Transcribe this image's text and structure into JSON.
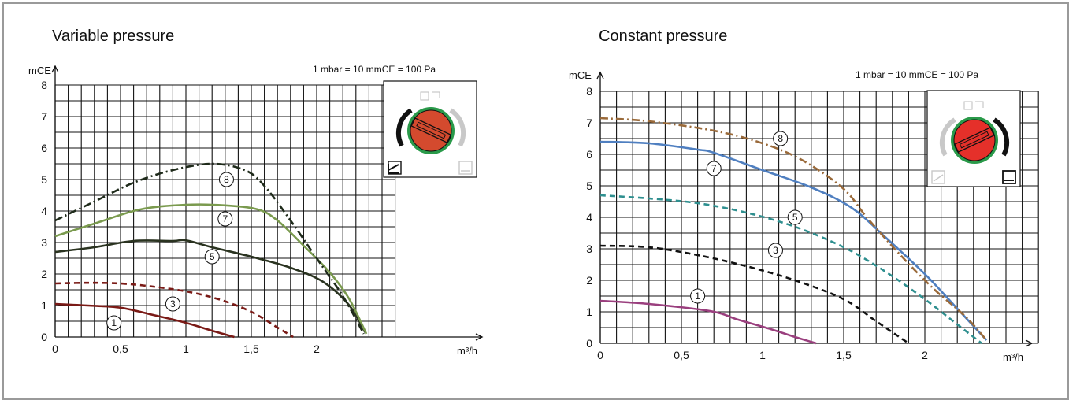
{
  "chart_data": [
    {
      "type": "line",
      "title": "Variable pressure",
      "note": "1 mbar = 10 mmCE = 100 Pa",
      "ylabel": "mCE",
      "xlabel": "m³/h",
      "xlim": [
        0,
        2.65
      ],
      "ylim": [
        0,
        8
      ],
      "grid": true,
      "x_ticks": [
        {
          "v": 0,
          "label": "0"
        },
        {
          "v": 0.5,
          "label": "0,5"
        },
        {
          "v": 1,
          "label": "1"
        },
        {
          "v": 1.5,
          "label": "1,5"
        },
        {
          "v": 2,
          "label": "2"
        }
      ],
      "y_ticks": [
        {
          "v": 0,
          "label": "0"
        },
        {
          "v": 1,
          "label": "1"
        },
        {
          "v": 2,
          "label": "2"
        },
        {
          "v": 3,
          "label": "3"
        },
        {
          "v": 4,
          "label": "4"
        },
        {
          "v": 5,
          "label": "5"
        },
        {
          "v": 6,
          "label": "6"
        },
        {
          "v": 7,
          "label": "7"
        },
        {
          "v": 8,
          "label": "8"
        }
      ],
      "series": [
        {
          "name": "1",
          "color": "#7a1a16",
          "dash": "solid",
          "points": [
            [
              0,
              1.05
            ],
            [
              0.25,
              1.0
            ],
            [
              0.5,
              0.93
            ],
            [
              0.75,
              0.7
            ],
            [
              1.0,
              0.45
            ],
            [
              1.2,
              0.2
            ],
            [
              1.37,
              0.0
            ]
          ],
          "label_pos": [
            0.45,
            0.45
          ]
        },
        {
          "name": "3",
          "color": "#7a1a16",
          "dash": "dashed",
          "points": [
            [
              0,
              1.7
            ],
            [
              0.25,
              1.72
            ],
            [
              0.5,
              1.7
            ],
            [
              0.75,
              1.6
            ],
            [
              1.0,
              1.45
            ],
            [
              1.25,
              1.2
            ],
            [
              1.5,
              0.8
            ],
            [
              1.7,
              0.3
            ],
            [
              1.82,
              0.0
            ]
          ],
          "label_pos": [
            0.9,
            1.05
          ]
        },
        {
          "name": "5",
          "color": "#2a3320",
          "dash": "solid",
          "points": [
            [
              0,
              2.7
            ],
            [
              0.3,
              2.85
            ],
            [
              0.6,
              3.05
            ],
            [
              0.9,
              3.05
            ],
            [
              1.0,
              3.07
            ],
            [
              1.2,
              2.85
            ],
            [
              1.5,
              2.55
            ],
            [
              1.8,
              2.2
            ],
            [
              2.05,
              1.75
            ],
            [
              2.25,
              1.0
            ],
            [
              2.37,
              0.15
            ]
          ],
          "label_pos": [
            1.2,
            2.55
          ]
        },
        {
          "name": "7",
          "color": "#7a9a4e",
          "dash": "solid",
          "points": [
            [
              0,
              3.2
            ],
            [
              0.3,
              3.6
            ],
            [
              0.65,
              4.05
            ],
            [
              1.0,
              4.2
            ],
            [
              1.3,
              4.18
            ],
            [
              1.55,
              4.05
            ],
            [
              1.7,
              3.7
            ],
            [
              1.9,
              2.9
            ],
            [
              2.1,
              2.05
            ],
            [
              2.25,
              1.2
            ],
            [
              2.38,
              0.1
            ]
          ],
          "label_pos": [
            1.3,
            3.75
          ]
        },
        {
          "name": "8",
          "color": "#1e2a1a",
          "dash": "dashdot",
          "points": [
            [
              0,
              3.7
            ],
            [
              0.3,
              4.3
            ],
            [
              0.6,
              4.9
            ],
            [
              0.9,
              5.3
            ],
            [
              1.2,
              5.5
            ],
            [
              1.45,
              5.3
            ],
            [
              1.6,
              4.8
            ],
            [
              1.8,
              3.7
            ],
            [
              2.0,
              2.5
            ],
            [
              2.2,
              1.3
            ],
            [
              2.36,
              0.1
            ]
          ],
          "label_pos": [
            1.31,
            5.0
          ]
        }
      ]
    },
    {
      "type": "line",
      "title": "Constant pressure",
      "note": "1 mbar = 10 mmCE = 100 Pa",
      "ylabel": "mCE",
      "xlabel": "m³/h",
      "xlim": [
        0,
        2.65
      ],
      "ylim": [
        0,
        8
      ],
      "grid": true,
      "x_ticks": [
        {
          "v": 0,
          "label": "0"
        },
        {
          "v": 0.5,
          "label": "0,5"
        },
        {
          "v": 1,
          "label": "1"
        },
        {
          "v": 1.5,
          "label": "1,5"
        },
        {
          "v": 2,
          "label": "2"
        }
      ],
      "y_ticks": [
        {
          "v": 0,
          "label": "0"
        },
        {
          "v": 1,
          "label": "1"
        },
        {
          "v": 2,
          "label": "2"
        },
        {
          "v": 3,
          "label": "3"
        },
        {
          "v": 4,
          "label": "4"
        },
        {
          "v": 5,
          "label": "5"
        },
        {
          "v": 6,
          "label": "6"
        },
        {
          "v": 7,
          "label": "7"
        },
        {
          "v": 8,
          "label": "8"
        }
      ],
      "series": [
        {
          "name": "1",
          "color": "#9a3f7e",
          "dash": "solid",
          "points": [
            [
              0,
              1.35
            ],
            [
              0.3,
              1.25
            ],
            [
              0.68,
              1.02
            ],
            [
              0.85,
              0.75
            ],
            [
              1.05,
              0.45
            ],
            [
              1.2,
              0.2
            ],
            [
              1.33,
              0.0
            ]
          ],
          "label_pos": [
            0.6,
            1.5
          ]
        },
        {
          "name": "3",
          "color": "#111111",
          "dash": "dashed",
          "points": [
            [
              0,
              3.1
            ],
            [
              0.3,
              3.05
            ],
            [
              0.6,
              2.8
            ],
            [
              0.9,
              2.45
            ],
            [
              1.2,
              2.0
            ],
            [
              1.5,
              1.4
            ],
            [
              1.7,
              0.7
            ],
            [
              1.9,
              0.0
            ]
          ],
          "label_pos": [
            1.08,
            2.95
          ]
        },
        {
          "name": "5",
          "color": "#2e8f8f",
          "dash": "dashed",
          "points": [
            [
              0,
              4.7
            ],
            [
              0.3,
              4.6
            ],
            [
              0.6,
              4.45
            ],
            [
              0.9,
              4.15
            ],
            [
              1.2,
              3.7
            ],
            [
              1.5,
              3.05
            ],
            [
              1.75,
              2.3
            ],
            [
              2.0,
              1.4
            ],
            [
              2.2,
              0.6
            ],
            [
              2.35,
              0.0
            ]
          ],
          "label_pos": [
            1.2,
            4.0
          ]
        },
        {
          "name": "7",
          "color": "#4f7fc0",
          "dash": "solid",
          "points": [
            [
              0,
              6.4
            ],
            [
              0.3,
              6.35
            ],
            [
              0.6,
              6.15
            ],
            [
              0.7,
              6.05
            ],
            [
              1.0,
              5.5
            ],
            [
              1.3,
              4.95
            ],
            [
              1.55,
              4.3
            ],
            [
              1.75,
              3.4
            ],
            [
              2.0,
              2.2
            ],
            [
              2.2,
              1.1
            ],
            [
              2.38,
              0.1
            ]
          ],
          "label_pos": [
            0.7,
            5.55
          ]
        },
        {
          "name": "8",
          "color": "#9a6a3a",
          "dash": "dashdot",
          "points": [
            [
              0,
              7.15
            ],
            [
              0.3,
              7.05
            ],
            [
              0.7,
              6.75
            ],
            [
              1.0,
              6.35
            ],
            [
              1.25,
              5.8
            ],
            [
              1.5,
              4.9
            ],
            [
              1.65,
              3.95
            ],
            [
              1.85,
              2.8
            ],
            [
              2.05,
              1.75
            ],
            [
              2.25,
              0.85
            ],
            [
              2.38,
              0.1
            ]
          ],
          "label_pos": [
            1.11,
            6.5
          ]
        }
      ]
    }
  ]
}
